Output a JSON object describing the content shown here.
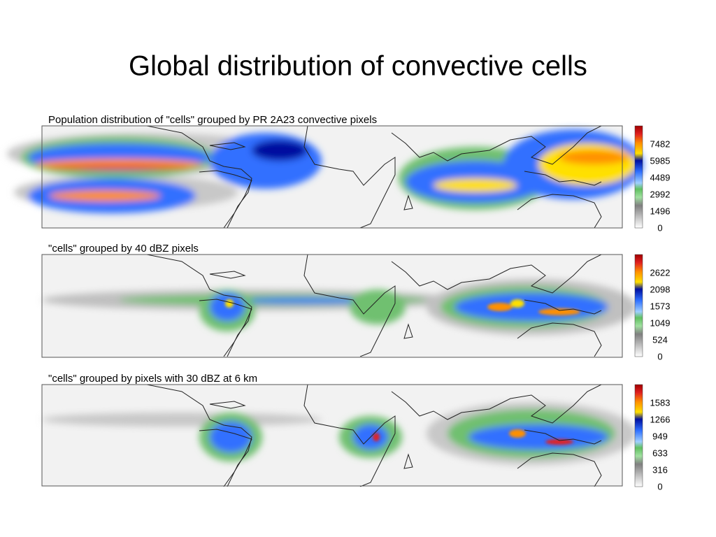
{
  "title": "Global distribution of convective cells",
  "panels": [
    {
      "label": "Population distribution of \"cells\" grouped by PR 2A23 convective pixels",
      "colorbar_ticks": [
        "7482",
        "5985",
        "4489",
        "2992",
        "1496",
        "0"
      ]
    },
    {
      "label": "\"cells\" grouped by 40 dBZ pixels",
      "colorbar_ticks": [
        "2622",
        "2098",
        "1573",
        "1049",
        "524",
        "0"
      ]
    },
    {
      "label": "\"cells\" grouped by pixels with 30 dBZ at 6 km",
      "colorbar_ticks": [
        "1583",
        "1266",
        "949",
        "633",
        "316",
        "0"
      ]
    }
  ]
}
